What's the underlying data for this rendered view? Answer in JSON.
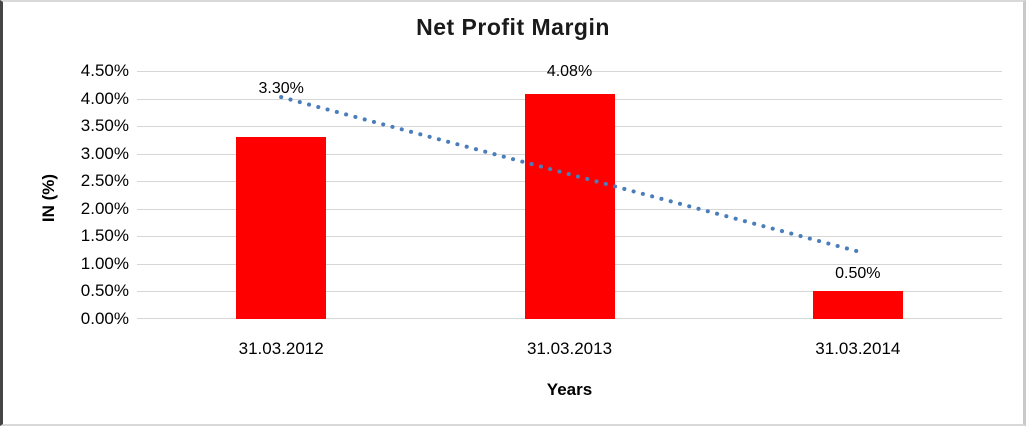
{
  "frame": {
    "background": "#ffffff",
    "border_left_color": "#454545",
    "border_other_color": "#d9d9d9"
  },
  "chart_data": {
    "type": "bar",
    "title": "Net Profit Margin",
    "xlabel": "Years",
    "ylabel": "IN (%)",
    "categories": [
      "31.03.2012",
      "31.03.2013",
      "31.03.2014"
    ],
    "values": [
      3.3,
      4.08,
      0.5
    ],
    "point_labels": [
      "3.30%",
      "4.08%",
      "0.50%"
    ],
    "ylim": [
      0,
      4.5
    ],
    "ytick_step": 0.5,
    "ytick_labels": [
      "0.00%",
      "0.50%",
      "1.00%",
      "1.50%",
      "2.00%",
      "2.50%",
      "3.00%",
      "3.50%",
      "4.00%",
      "4.50%"
    ],
    "grid": true,
    "gridline_color": "#d6d6d6",
    "bar_color": "#ff0000",
    "text_color": "#000000",
    "legend": false,
    "trendline": {
      "type": "linear",
      "style": "dotted",
      "color": "#4a7ebb"
    }
  }
}
